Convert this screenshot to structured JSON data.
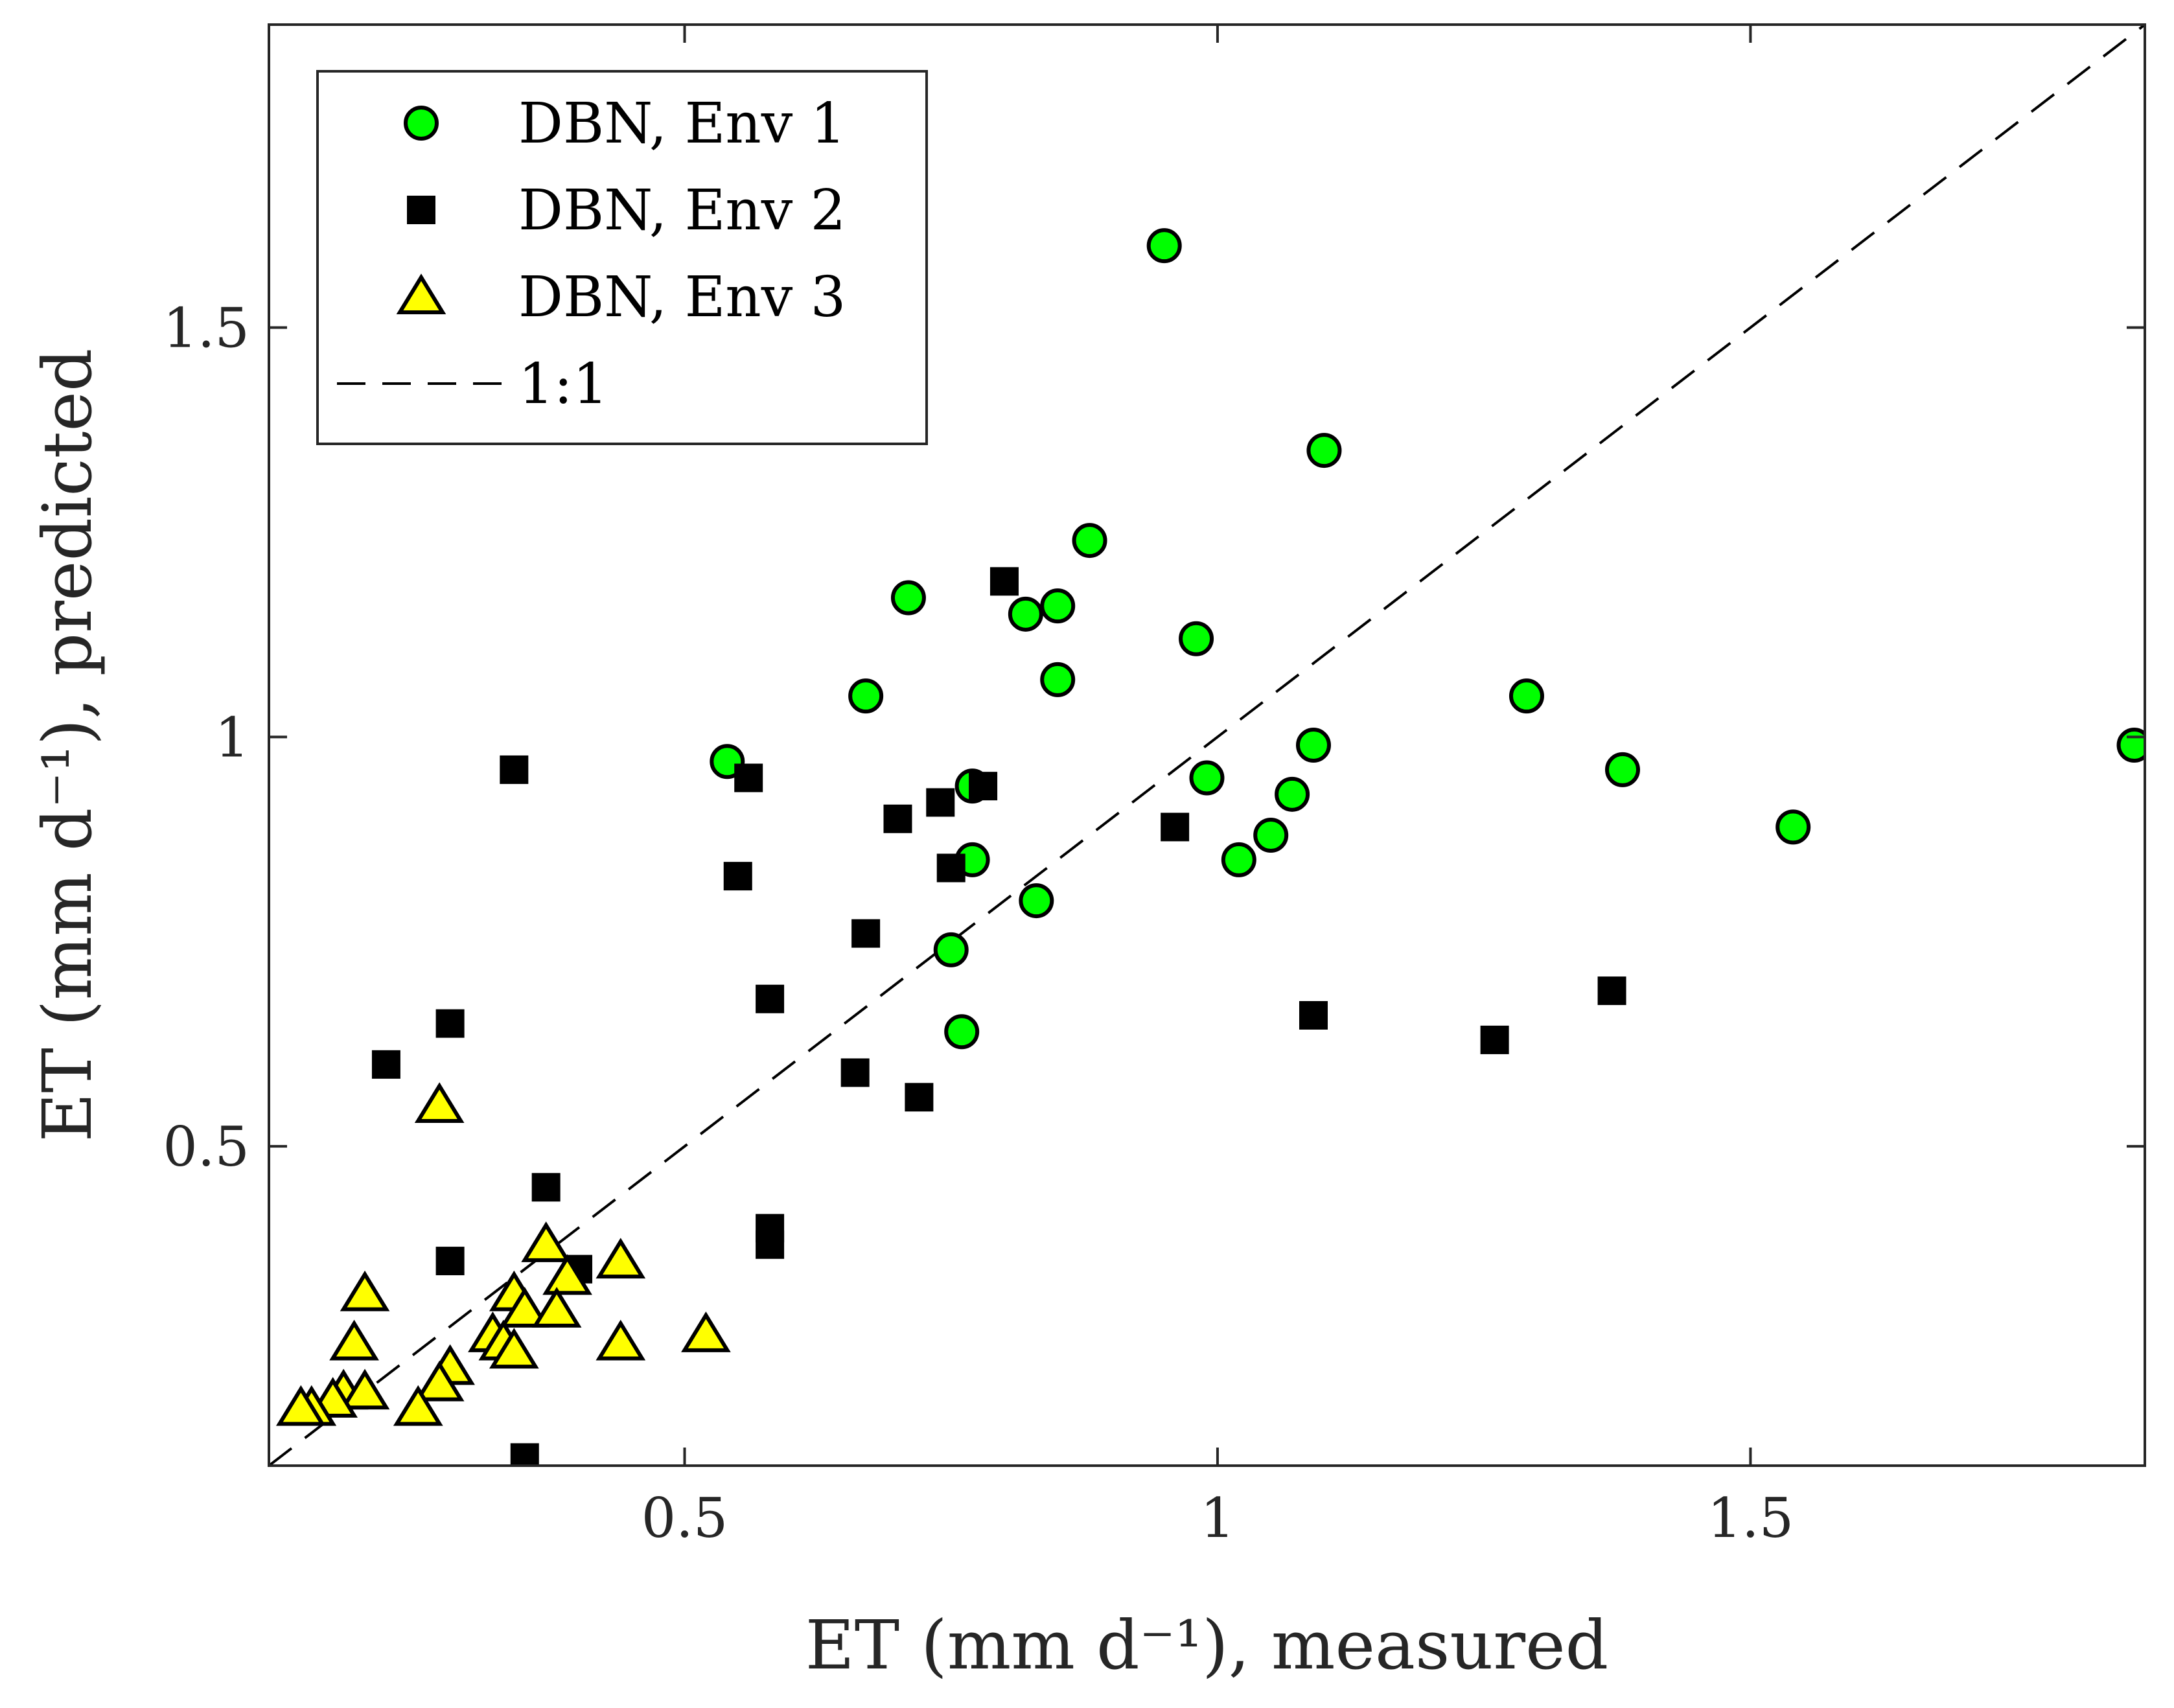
{
  "chart_data": {
    "type": "scatter",
    "xlabel": "ET (mm d⁻¹), measured",
    "ylabel": "ET (mm d⁻¹), predicted",
    "xlim": [
      0.11,
      1.87
    ],
    "ylim": [
      0.11,
      1.87
    ],
    "x_ticks": [
      0.5,
      1,
      1.5
    ],
    "x_tick_labels": [
      "0.5",
      "1",
      "1.5"
    ],
    "y_ticks": [
      0.5,
      1,
      1.5
    ],
    "y_tick_labels": [
      "0.5",
      "1",
      "1.5"
    ],
    "grid": false,
    "legend_position": "top-left",
    "series": [
      {
        "name": "DBN, Env 1",
        "marker": "circle",
        "color": "#00ff00",
        "points": [
          [
            0.95,
            1.6
          ],
          [
            1.1,
            1.35
          ],
          [
            0.88,
            1.24
          ],
          [
            0.71,
            1.17
          ],
          [
            0.82,
            1.15
          ],
          [
            0.85,
            1.16
          ],
          [
            0.98,
            1.12
          ],
          [
            0.85,
            1.07
          ],
          [
            0.67,
            1.05
          ],
          [
            1.29,
            1.05
          ],
          [
            0.54,
            0.97
          ],
          [
            1.09,
            0.99
          ],
          [
            1.86,
            0.99
          ],
          [
            1.38,
            0.96
          ],
          [
            0.99,
            0.95
          ],
          [
            0.77,
            0.94
          ],
          [
            1.07,
            0.93
          ],
          [
            1.05,
            0.88
          ],
          [
            1.54,
            0.89
          ],
          [
            1.02,
            0.85
          ],
          [
            0.77,
            0.85
          ],
          [
            0.83,
            0.8
          ],
          [
            0.75,
            0.74
          ],
          [
            0.76,
            0.64
          ]
        ]
      },
      {
        "name": "DBN, Env 2",
        "marker": "square",
        "color": "#000000",
        "points": [
          [
            0.8,
            1.19
          ],
          [
            0.34,
            0.96
          ],
          [
            0.56,
            0.95
          ],
          [
            0.78,
            0.94
          ],
          [
            0.74,
            0.92
          ],
          [
            0.7,
            0.9
          ],
          [
            0.96,
            0.89
          ],
          [
            0.55,
            0.83
          ],
          [
            0.75,
            0.84
          ],
          [
            0.67,
            0.76
          ],
          [
            0.58,
            0.68
          ],
          [
            1.37,
            0.69
          ],
          [
            1.09,
            0.66
          ],
          [
            0.28,
            0.65
          ],
          [
            1.26,
            0.63
          ],
          [
            0.22,
            0.6
          ],
          [
            0.66,
            0.59
          ],
          [
            0.72,
            0.56
          ],
          [
            0.37,
            0.45
          ],
          [
            0.58,
            0.4
          ],
          [
            0.58,
            0.38
          ],
          [
            0.28,
            0.36
          ],
          [
            0.4,
            0.35
          ],
          [
            0.35,
            0.12
          ]
        ]
      },
      {
        "name": "DBN, Env 3",
        "marker": "triangle",
        "color": "#ffff00",
        "points": [
          [
            0.27,
            0.55
          ],
          [
            0.37,
            0.38
          ],
          [
            0.44,
            0.36
          ],
          [
            0.39,
            0.34
          ],
          [
            0.34,
            0.32
          ],
          [
            0.2,
            0.32
          ],
          [
            0.35,
            0.3
          ],
          [
            0.38,
            0.3
          ],
          [
            0.32,
            0.27
          ],
          [
            0.33,
            0.26
          ],
          [
            0.34,
            0.25
          ],
          [
            0.44,
            0.26
          ],
          [
            0.52,
            0.27
          ],
          [
            0.19,
            0.26
          ],
          [
            0.28,
            0.23
          ],
          [
            0.27,
            0.21
          ],
          [
            0.18,
            0.2
          ],
          [
            0.2,
            0.2
          ],
          [
            0.17,
            0.19
          ],
          [
            0.15,
            0.18
          ],
          [
            0.25,
            0.18
          ],
          [
            0.14,
            0.18
          ]
        ]
      },
      {
        "name": "1:1",
        "marker": "dashed-line",
        "color": "#000000",
        "points": [
          [
            0.11,
            0.11
          ],
          [
            1.87,
            1.87
          ]
        ]
      }
    ]
  }
}
